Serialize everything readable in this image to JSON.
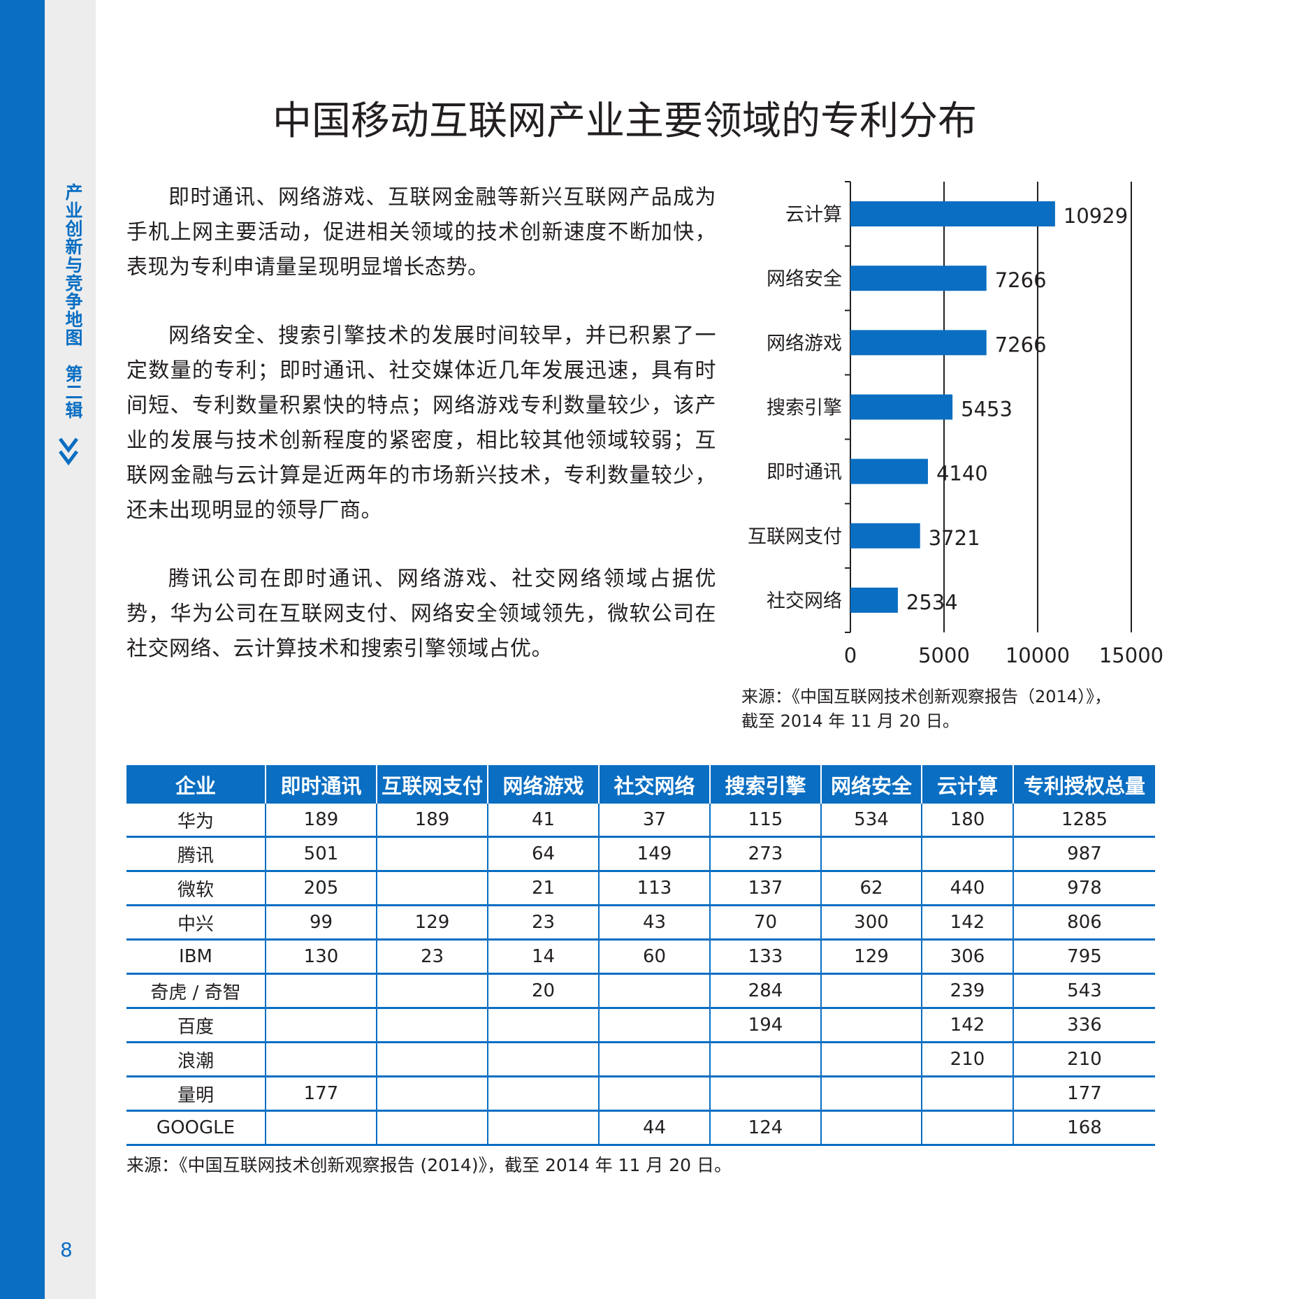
{
  "side": {
    "title": "产业创新与竞争地图　第二辑",
    "page_number": "8",
    "arrow_icon": "double-chevron-down-icon"
  },
  "page_title": "中国移动互联网产业主要领域的专利分布",
  "paragraphs": [
    "即时通讯、网络游戏、互联网金融等新兴互联网产品成为手机上网主要活动，促进相关领域的技术创新速度不断加快，表现为专利申请量呈现明显增长态势。",
    "网络安全、搜索引擎技术的发展时间较早，并已积累了一定数量的专利；即时通讯、社交媒体近几年发展迅速，具有时间短、专利数量积累快的特点；网络游戏专利数量较少，该产业的发展与技术创新程度的紧密度，相比较其他领域较弱；互联网金融与云计算是近两年的市场新兴技术，专利数量较少，还未出现明显的领导厂商。",
    "腾讯公司在即时通讯、网络游戏、社交网络领域占据优势，华为公司在互联网支付、网络安全领域领先，微软公司在社交网络、云计算技术和搜索引擎领域占优。"
  ],
  "chart_data": {
    "type": "bar",
    "orientation": "horizontal",
    "categories": [
      "云计算",
      "网络安全",
      "网络游戏",
      "搜索引擎",
      "即时通讯",
      "互联网支付",
      "社交网络"
    ],
    "values": [
      10929,
      7266,
      7266,
      5453,
      4140,
      3721,
      2534
    ],
    "data_labels": [
      "10929",
      "7266",
      "7266",
      "5453",
      "4140",
      "3721",
      "2534"
    ],
    "xlim": [
      0,
      15000
    ],
    "xticks": [
      "0",
      "5000",
      "10000",
      "15000"
    ],
    "grid": "vertical",
    "bar_color": "#0a6ec2"
  },
  "chart_source": {
    "line1": "来源：《中国互联网技术创新观察报告（2014）》，",
    "line2": "截至 2014 年 11 月 20 日。"
  },
  "table": {
    "headers": [
      "企业",
      "即时通讯",
      "互联网支付",
      "网络游戏",
      "社交网络",
      "搜索引擎",
      "网络安全",
      "云计算",
      "专利授权总量"
    ],
    "rows": [
      [
        "华为",
        "189",
        "189",
        "41",
        "37",
        "115",
        "534",
        "180",
        "1285"
      ],
      [
        "腾讯",
        "501",
        "",
        "64",
        "149",
        "273",
        "",
        "",
        "987"
      ],
      [
        "微软",
        "205",
        "",
        "21",
        "113",
        "137",
        "62",
        "440",
        "978"
      ],
      [
        "中兴",
        "99",
        "129",
        "23",
        "43",
        "70",
        "300",
        "142",
        "806"
      ],
      [
        "IBM",
        "130",
        "23",
        "14",
        "60",
        "133",
        "129",
        "306",
        "795"
      ],
      [
        "奇虎 / 奇智",
        "",
        "",
        "20",
        "",
        "284",
        "",
        "239",
        "543"
      ],
      [
        "百度",
        "",
        "",
        "",
        "",
        "194",
        "",
        "142",
        "336"
      ],
      [
        "浪潮",
        "",
        "",
        "",
        "",
        "",
        "",
        "210",
        "210"
      ],
      [
        "量明",
        "177",
        "",
        "",
        "",
        "",
        "",
        "",
        "177"
      ],
      [
        "GOOGLE",
        "",
        "",
        "",
        "44",
        "124",
        "",
        "",
        "168"
      ]
    ],
    "header_color": "#0a6ec2"
  },
  "table_source": "来源：《中国互联网技术创新观察报告 (2014)》，截至 2014 年 11 月 20 日。"
}
